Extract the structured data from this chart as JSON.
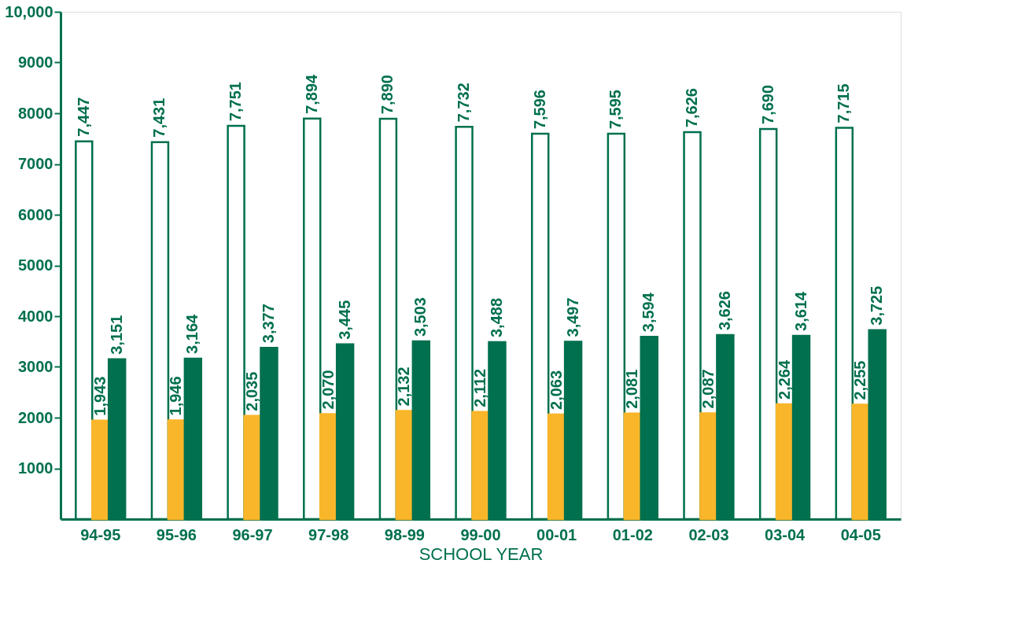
{
  "chart_data": {
    "type": "bar",
    "xlabel": "SCHOOL YEAR",
    "categories": [
      "94-95",
      "95-96",
      "96-97",
      "97-98",
      "98-99",
      "99-00",
      "00-01",
      "01-02",
      "02-03",
      "03-04",
      "04-05"
    ],
    "series": [
      {
        "color": "#ffffff",
        "values": [
          7447,
          7431,
          7751,
          7894,
          7890,
          7732,
          7596,
          7595,
          7626,
          7690,
          7715
        ],
        "value_labels": [
          "7,447",
          "7,431",
          "7,751",
          "7,894",
          "7,890",
          "7,732",
          "7,596",
          "7,595",
          "7,626",
          "7,690",
          "7,715"
        ]
      },
      {
        "color": "#f9b62a",
        "values": [
          1943,
          1946,
          2035,
          2070,
          2132,
          2112,
          2063,
          2081,
          2087,
          2264,
          2255
        ],
        "value_labels": [
          "1,943",
          "1,946",
          "2,035",
          "2,070",
          "2,132",
          "2,112",
          "2,063",
          "2,081",
          "2,087",
          "2,264",
          "2,255"
        ]
      },
      {
        "color": "#00704f",
        "values": [
          3151,
          3164,
          3377,
          3445,
          3503,
          3488,
          3497,
          3594,
          3626,
          3614,
          3725
        ],
        "value_labels": [
          "3,151",
          "3,164",
          "3,377",
          "3,445",
          "3,503",
          "3,488",
          "3,497",
          "3,594",
          "3,626",
          "3,614",
          "3,725"
        ]
      }
    ],
    "ylim": [
      0,
      10000
    ],
    "yticks": [
      1000,
      2000,
      3000,
      4000,
      5000,
      6000,
      7000,
      8000,
      9000,
      {
        "value": 10000,
        "label": "10,000"
      }
    ],
    "grid": false
  }
}
